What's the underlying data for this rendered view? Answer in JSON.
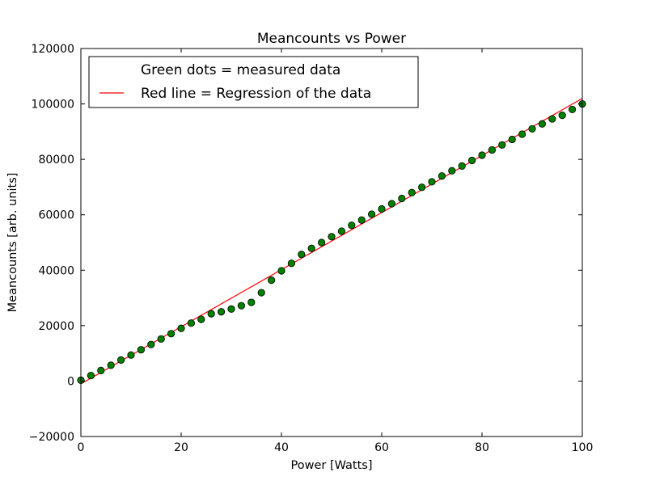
{
  "chart_data": {
    "type": "scatter",
    "title": "Meancounts vs Power",
    "xlabel": "Power [Watts]",
    "ylabel": "Meancounts [arb. units]",
    "xlim": [
      0,
      100
    ],
    "ylim": [
      -20000,
      120000
    ],
    "xticks": [
      "0",
      "20",
      "40",
      "60",
      "80",
      "100"
    ],
    "yticks": [
      "−20000",
      "0",
      "20000",
      "40000",
      "60000",
      "80000",
      "100000",
      "120000"
    ],
    "grid": false,
    "legend_position": "top-left",
    "legend": [
      "Green dots = measured data",
      "Red line = Regression of the data"
    ],
    "series": [
      {
        "kind": "points",
        "color": "#008000",
        "x": [
          0,
          2,
          4,
          6,
          8,
          10,
          12,
          14,
          16,
          18,
          20,
          22,
          24,
          26,
          28,
          30,
          32,
          34,
          36,
          38,
          40,
          42,
          44,
          46,
          48,
          50,
          52,
          54,
          56,
          58,
          60,
          62,
          64,
          66,
          68,
          70,
          72,
          74,
          76,
          78,
          80,
          82,
          84,
          86,
          88,
          90,
          92,
          94,
          96,
          98,
          100
        ],
        "y": [
          300,
          2000,
          3800,
          5700,
          7600,
          9400,
          11300,
          13200,
          15200,
          17100,
          19000,
          20900,
          22300,
          24300,
          25000,
          26000,
          27200,
          28400,
          31900,
          36400,
          39800,
          42500,
          45700,
          47900,
          50000,
          52100,
          54100,
          56200,
          58100,
          60200,
          62100,
          64000,
          65900,
          68000,
          69900,
          71900,
          74000,
          75900,
          77600,
          79600,
          81500,
          83400,
          85200,
          87200,
          89100,
          91000,
          92800,
          94600,
          95900,
          98000,
          100000
        ]
      },
      {
        "kind": "line",
        "color": "#ff0000",
        "x": [
          0,
          100
        ],
        "y": [
          -1000,
          102000
        ]
      }
    ]
  }
}
